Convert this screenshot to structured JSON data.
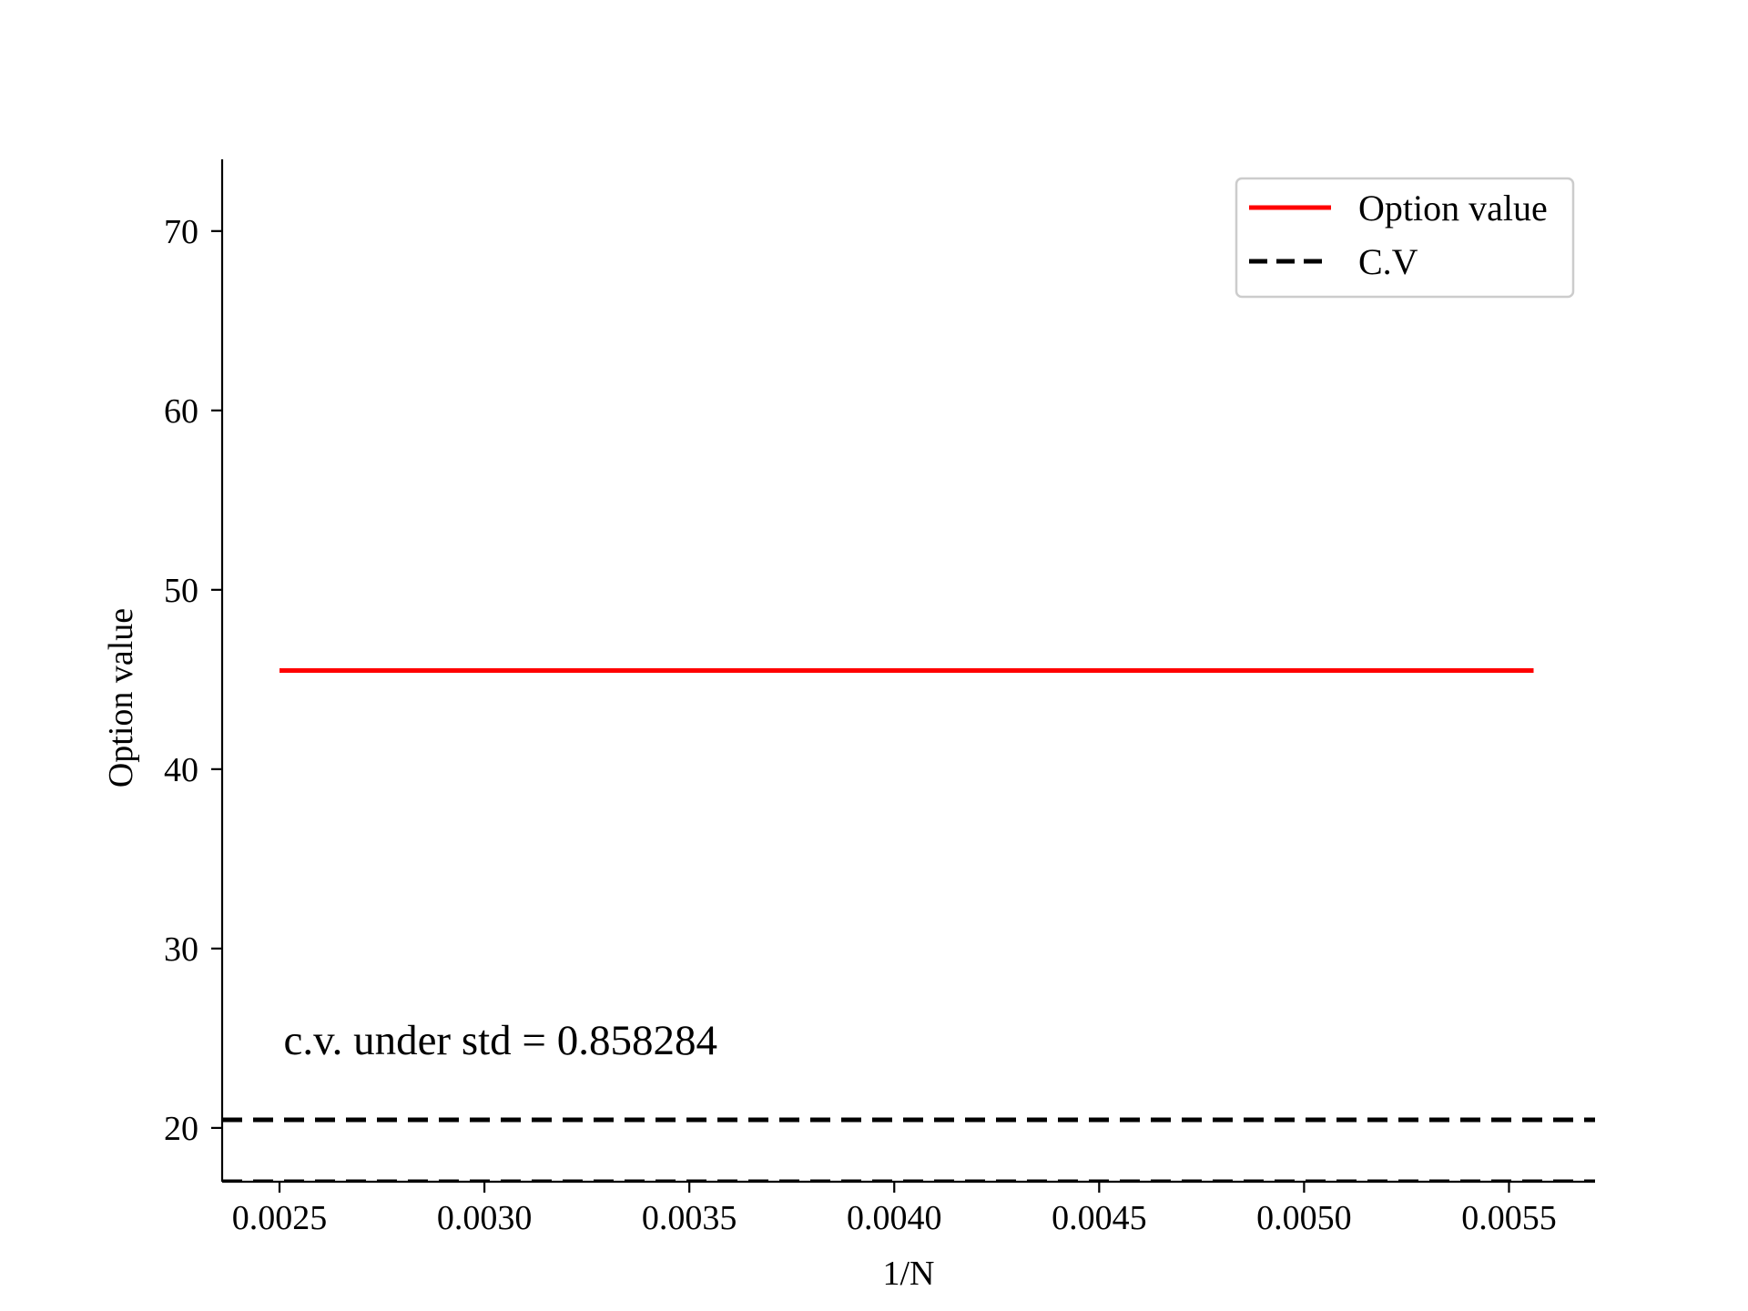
{
  "chart_data": {
    "type": "line",
    "title": "",
    "xlabel": "1/N",
    "ylabel": "Option value",
    "xlim": [
      0.00236,
      0.00571
    ],
    "ylim": [
      17.0,
      74.0
    ],
    "xticks": [
      0.0025,
      0.003,
      0.0035,
      0.004,
      0.0045,
      0.005,
      0.0055
    ],
    "xtick_labels": [
      "0.0025",
      "0.0030",
      "0.0035",
      "0.0040",
      "0.0045",
      "0.0050",
      "0.0055"
    ],
    "yticks": [
      20,
      30,
      40,
      50,
      60,
      70
    ],
    "ytick_labels": [
      "20",
      "30",
      "40",
      "50",
      "60",
      "70"
    ],
    "grid": false,
    "legend": {
      "placement": "top-right"
    },
    "series": [
      {
        "name": "Option value",
        "style": "solid",
        "color": "#ff0000",
        "x": [
          0.0025,
          0.00556
        ],
        "y": [
          45.5,
          45.5
        ]
      },
      {
        "name": "C.V",
        "style": "dashed",
        "color": "#000000",
        "x": [
          0.00236,
          0.00571
        ],
        "y": [
          20.45,
          20.45
        ]
      },
      {
        "name": "",
        "style": "dashed",
        "color": "#000000",
        "x": [
          0.00236,
          0.00571
        ],
        "y": [
          17.05,
          17.05
        ]
      }
    ],
    "annotation": {
      "text": "c.v. under std = 0.858284",
      "x": 0.00251,
      "y": 24.1
    }
  }
}
